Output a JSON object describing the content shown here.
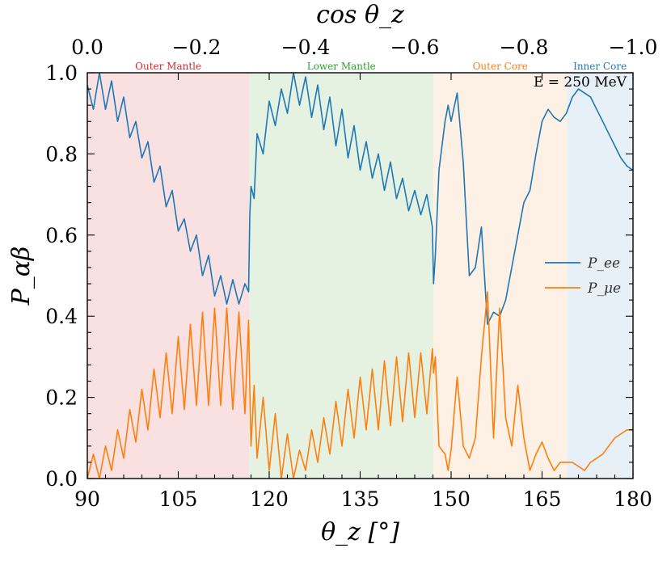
{
  "chart_data": {
    "type": "line",
    "xlabel": "θ_z [°]",
    "ylabel": "P_αβ",
    "top_xlabel": "cos θ_z",
    "xlim": [
      90,
      180
    ],
    "ylim": [
      0,
      1
    ],
    "xticks": [
      90,
      105,
      120,
      135,
      150,
      165,
      180
    ],
    "xtick_labels": [
      "90",
      "105",
      "120",
      "135",
      "150",
      "165",
      "180"
    ],
    "yticks": [
      0.0,
      0.2,
      0.4,
      0.6,
      0.8,
      1.0
    ],
    "ytick_labels": [
      "0.0",
      "0.2",
      "0.4",
      "0.6",
      "0.8",
      "1.0"
    ],
    "top_xticks": [
      0.0,
      -0.2,
      -0.4,
      -0.6,
      -0.8,
      -1.0
    ],
    "top_xtick_labels": [
      "0.0",
      "−0.2",
      "−0.4",
      "−0.6",
      "−0.8",
      "−1.0"
    ],
    "annotation": "E = 250 MeV",
    "regions": [
      {
        "name": "Outer Mantle",
        "x0": 90,
        "x1": 116.7,
        "color": "#f9e0e1",
        "label_color": "#d62728"
      },
      {
        "name": "Lower Mantle",
        "x0": 116.7,
        "x1": 147.1,
        "color": "#e5f2e2",
        "label_color": "#2ca02c"
      },
      {
        "name": "Outer Core",
        "x0": 147.1,
        "x1": 169.1,
        "color": "#fdf0e4",
        "label_color": "#ff7f0e"
      },
      {
        "name": "Inner Core",
        "x0": 169.1,
        "x1": 180,
        "color": "#e7eff7",
        "label_color": "#1f77b4"
      }
    ],
    "legend_position": "right",
    "series": [
      {
        "name": "P_ee",
        "color": "#1f77b4",
        "x": [
          90,
          91,
          92,
          93,
          94,
          95,
          96,
          97,
          98,
          99,
          100,
          101,
          102,
          103,
          104,
          105,
          106,
          107,
          108,
          109,
          110,
          111,
          112,
          113,
          114,
          115,
          116,
          116.6,
          116.8,
          117,
          117.5,
          118,
          119,
          120,
          121,
          122,
          123,
          124,
          125,
          126,
          127,
          128,
          129,
          130,
          131,
          132,
          133,
          134,
          135,
          136,
          137,
          138,
          139,
          140,
          141,
          142,
          143,
          144,
          145,
          146,
          146.9,
          147.1,
          147.4,
          148,
          149,
          149.5,
          150,
          151,
          152,
          153,
          154,
          155,
          156,
          157,
          158,
          159,
          160,
          161,
          162,
          163,
          164,
          165,
          166,
          167,
          168,
          169,
          170,
          171,
          172,
          173,
          174,
          175,
          176,
          177,
          178,
          179,
          180
        ],
        "y": [
          0.97,
          0.91,
          1.0,
          0.91,
          0.98,
          0.88,
          0.94,
          0.84,
          0.88,
          0.79,
          0.83,
          0.73,
          0.77,
          0.67,
          0.71,
          0.61,
          0.64,
          0.56,
          0.6,
          0.5,
          0.55,
          0.45,
          0.5,
          0.43,
          0.49,
          0.43,
          0.48,
          0.46,
          0.65,
          0.72,
          0.69,
          0.85,
          0.8,
          0.93,
          0.87,
          0.96,
          0.9,
          1.0,
          0.92,
          0.99,
          0.89,
          0.97,
          0.86,
          0.94,
          0.82,
          0.91,
          0.79,
          0.87,
          0.76,
          0.83,
          0.74,
          0.8,
          0.71,
          0.78,
          0.69,
          0.74,
          0.66,
          0.71,
          0.65,
          0.7,
          0.62,
          0.48,
          0.55,
          0.76,
          0.88,
          0.92,
          0.88,
          0.95,
          0.78,
          0.5,
          0.52,
          0.62,
          0.38,
          0.41,
          0.4,
          0.44,
          0.52,
          0.6,
          0.68,
          0.71,
          0.8,
          0.88,
          0.91,
          0.89,
          0.88,
          0.9,
          0.94,
          0.96,
          0.95,
          0.94,
          0.91,
          0.88,
          0.85,
          0.82,
          0.79,
          0.77,
          0.76
        ]
      },
      {
        "name": "P_μe",
        "color": "#ff7f0e",
        "x": [
          90,
          91,
          92,
          93,
          94,
          95,
          96,
          97,
          98,
          99,
          100,
          101,
          102,
          103,
          104,
          105,
          106,
          107,
          108,
          109,
          110,
          111,
          112,
          113,
          114,
          115,
          116,
          116.6,
          116.8,
          117,
          117.5,
          118,
          119,
          120,
          121,
          122,
          123,
          124,
          125,
          126,
          127,
          128,
          129,
          130,
          131,
          132,
          133,
          134,
          135,
          136,
          137,
          138,
          139,
          140,
          141,
          142,
          143,
          144,
          145,
          146,
          146.9,
          147.1,
          147.4,
          148,
          149,
          149.5,
          150,
          151,
          152,
          153,
          154,
          155,
          156,
          157,
          158,
          159,
          160,
          161,
          162,
          163,
          164,
          165,
          166,
          167,
          168,
          169,
          170,
          171,
          172,
          173,
          174,
          175,
          176,
          177,
          178,
          179,
          180
        ],
        "y": [
          0.0,
          0.06,
          0.0,
          0.08,
          0.02,
          0.12,
          0.05,
          0.17,
          0.09,
          0.22,
          0.12,
          0.27,
          0.15,
          0.31,
          0.16,
          0.35,
          0.17,
          0.38,
          0.18,
          0.41,
          0.18,
          0.42,
          0.18,
          0.42,
          0.17,
          0.41,
          0.16,
          0.39,
          0.22,
          0.08,
          0.23,
          0.05,
          0.2,
          0.02,
          0.16,
          0.0,
          0.11,
          0.0,
          0.07,
          0.02,
          0.12,
          0.04,
          0.15,
          0.06,
          0.19,
          0.08,
          0.22,
          0.1,
          0.25,
          0.12,
          0.27,
          0.12,
          0.29,
          0.13,
          0.3,
          0.14,
          0.31,
          0.15,
          0.31,
          0.16,
          0.32,
          0.26,
          0.3,
          0.08,
          0.06,
          0.02,
          0.07,
          0.25,
          0.08,
          0.05,
          0.1,
          0.3,
          0.46,
          0.1,
          0.42,
          0.15,
          0.08,
          0.23,
          0.1,
          0.02,
          0.06,
          0.09,
          0.05,
          0.02,
          0.04,
          0.04,
          0.04,
          0.03,
          0.02,
          0.04,
          0.05,
          0.06,
          0.08,
          0.1,
          0.11,
          0.12,
          0.12
        ]
      }
    ]
  }
}
